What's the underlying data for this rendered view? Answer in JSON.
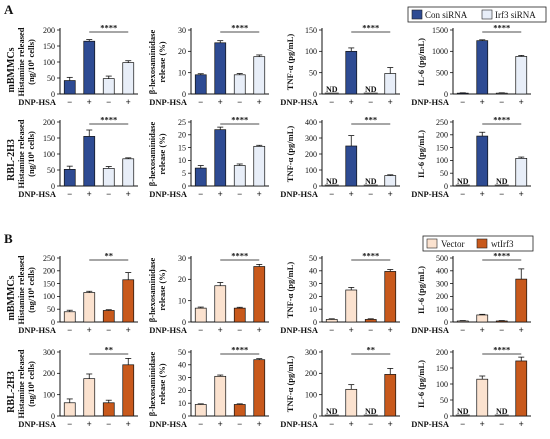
{
  "panels": [
    "A",
    "B"
  ],
  "row_labels": [
    "mBMMCs",
    "RBL-2H3"
  ],
  "legends": {
    "A": {
      "entries": [
        {
          "label": "Con siRNA",
          "color": "#2e4b93"
        },
        {
          "label": "Irf3 siRNA",
          "color": "#e8eef8"
        }
      ]
    },
    "B": {
      "entries": [
        {
          "label": "Vector",
          "color": "#fbe2cf"
        },
        {
          "label": "wtIrf3",
          "color": "#c8591c"
        }
      ]
    }
  },
  "treatment_label": "DNP-HSA",
  "x_ticks": [
    "−",
    "+",
    "−",
    "+"
  ],
  "nd_label": "ND",
  "chart_data": [
    {
      "type": "bar",
      "panel": "A",
      "row": "mBMMCs",
      "ylabel_line1": "Histamine released",
      "ylabel_line2": "(ng/10⁶ cells)",
      "ylim": [
        0,
        200
      ],
      "yticks": [
        0,
        50,
        100,
        150,
        200
      ],
      "ytick_labels": [
        "0",
        "50",
        "100",
        "150",
        "200"
      ],
      "values": [
        42,
        165,
        48,
        98
      ],
      "errors": [
        10,
        5,
        8,
        6
      ],
      "nd": [
        false,
        false,
        false,
        false
      ],
      "significance": "****",
      "colors": [
        "#2e4b93",
        "#e8eef8",
        "#2e4b93",
        "#e8eef8"
      ]
    },
    {
      "type": "bar",
      "panel": "A",
      "row": "mBMMCs",
      "ylabel_line1": "β-hexosaminidase",
      "ylabel_line2": "release (%)",
      "ylim": [
        0,
        30
      ],
      "yticks": [
        0,
        10,
        20,
        30
      ],
      "ytick_labels": [
        "0",
        "10",
        "20",
        "30"
      ],
      "values": [
        9,
        24,
        9,
        17.5
      ],
      "errors": [
        0.5,
        1,
        0.6,
        0.8
      ],
      "nd": [
        false,
        false,
        false,
        false
      ],
      "significance": "****"
    },
    {
      "type": "bar",
      "panel": "A",
      "row": "mBMMCs",
      "ylabel_line1": "TNF-α (pg/mL)",
      "ylabel_line2": "",
      "ylim": [
        0,
        150
      ],
      "yticks": [
        0,
        50,
        100,
        150
      ],
      "ytick_labels": [
        "0",
        "50",
        "100",
        "150"
      ],
      "values": [
        0,
        100,
        0,
        48
      ],
      "errors": [
        0,
        8,
        0,
        14
      ],
      "nd": [
        true,
        false,
        true,
        false
      ],
      "significance": "****"
    },
    {
      "type": "bar",
      "panel": "A",
      "row": "mBMMCs",
      "ylabel_line1": "IL-6 (pg/mL)",
      "ylabel_line2": "",
      "ylim": [
        0,
        1500
      ],
      "yticks": [
        0,
        500,
        1000,
        1500
      ],
      "ytick_labels": [
        "0",
        "500",
        "1000",
        "1500"
      ],
      "values": [
        20,
        1250,
        20,
        880
      ],
      "errors": [
        8,
        20,
        8,
        25
      ],
      "nd": [
        false,
        false,
        false,
        false
      ],
      "significance": "****"
    },
    {
      "type": "bar",
      "panel": "A",
      "row": "RBL-2H3",
      "ylabel_line1": "Histamine released",
      "ylabel_line2": "(ng/10⁶ cells)",
      "ylim": [
        0,
        200
      ],
      "yticks": [
        0,
        50,
        100,
        150,
        200
      ],
      "ytick_labels": [
        "0",
        "50",
        "100",
        "150",
        "200"
      ],
      "values": [
        52,
        155,
        55,
        85
      ],
      "errors": [
        10,
        20,
        6,
        3
      ],
      "nd": [
        false,
        false,
        false,
        false
      ],
      "significance": "****"
    },
    {
      "type": "bar",
      "panel": "A",
      "row": "RBL-2H3",
      "ylabel_line1": "β-hexosaminidase",
      "ylabel_line2": "release (%)",
      "ylim": [
        0,
        25
      ],
      "yticks": [
        0,
        5,
        10,
        15,
        20,
        25
      ],
      "ytick_labels": [
        "0",
        "5",
        "10",
        "15",
        "20",
        "25"
      ],
      "values": [
        7,
        22,
        8,
        15.5
      ],
      "errors": [
        1,
        1,
        0.6,
        0.4
      ],
      "nd": [
        false,
        false,
        false,
        false
      ],
      "significance": "****"
    },
    {
      "type": "bar",
      "panel": "A",
      "row": "RBL-2H3",
      "ylabel_line1": "TNF-α (pg/mL)",
      "ylabel_line2": "",
      "ylim": [
        0,
        400
      ],
      "yticks": [
        0,
        100,
        200,
        300,
        400
      ],
      "ytick_labels": [
        "0",
        "100",
        "200",
        "300",
        "400"
      ],
      "values": [
        0,
        250,
        0,
        65
      ],
      "errors": [
        0,
        65,
        0,
        5
      ],
      "nd": [
        true,
        false,
        true,
        false
      ],
      "significance": "***"
    },
    {
      "type": "bar",
      "panel": "A",
      "row": "RBL-2H3",
      "ylabel_line1": "IL-6 (pg/mL)",
      "ylabel_line2": "",
      "ylim": [
        0,
        250
      ],
      "yticks": [
        0,
        50,
        100,
        150,
        200,
        250
      ],
      "ytick_labels": [
        "0",
        "50",
        "100",
        "150",
        "200",
        "250"
      ],
      "values": [
        0,
        195,
        0,
        108
      ],
      "errors": [
        0,
        15,
        0,
        5
      ],
      "nd": [
        true,
        false,
        true,
        false
      ],
      "significance": "****"
    },
    {
      "type": "bar",
      "panel": "B",
      "row": "mBMMCs",
      "ylabel_line1": "Histamine  released",
      "ylabel_line2": "(ng/10⁶ cells)",
      "ylim": [
        0,
        250
      ],
      "yticks": [
        0,
        50,
        100,
        150,
        200,
        250
      ],
      "ytick_labels": [
        "0",
        "50",
        "100",
        "150",
        "200",
        "250"
      ],
      "values": [
        40,
        115,
        45,
        165
      ],
      "errors": [
        6,
        5,
        3,
        28
      ],
      "nd": [
        false,
        false,
        false,
        false
      ],
      "significance": "**"
    },
    {
      "type": "bar",
      "panel": "B",
      "row": "mBMMCs",
      "ylabel_line1": "β-hexosaminidase",
      "ylabel_line2": "release (%)",
      "ylim": [
        0,
        30
      ],
      "yticks": [
        0,
        10,
        20,
        30
      ],
      "ytick_labels": [
        "0",
        "10",
        "20",
        "30"
      ],
      "values": [
        6.5,
        17,
        6.5,
        26
      ],
      "errors": [
        0.5,
        1.5,
        0.4,
        1
      ],
      "nd": [
        false,
        false,
        false,
        false
      ],
      "significance": "****"
    },
    {
      "type": "bar",
      "panel": "B",
      "row": "mBMMCs",
      "ylabel_line1": "TNF-α (pg/mL)",
      "ylabel_line2": "",
      "ylim": [
        0,
        50
      ],
      "yticks": [
        0,
        10,
        20,
        30,
        40,
        50
      ],
      "ytick_labels": [
        "0",
        "10",
        "20",
        "30",
        "40",
        "50"
      ],
      "values": [
        2,
        25,
        2,
        39.5
      ],
      "errors": [
        0.5,
        2,
        0.5,
        1.5
      ],
      "nd": [
        false,
        false,
        false,
        false
      ],
      "significance": "****"
    },
    {
      "type": "bar",
      "panel": "B",
      "row": "mBMMCs",
      "ylabel_line1": "IL-6 (pg/mL)",
      "ylabel_line2": "",
      "ylim": [
        0,
        500
      ],
      "yticks": [
        0,
        100,
        200,
        300,
        400,
        500
      ],
      "ytick_labels": [
        "0",
        "100",
        "200",
        "300",
        "400",
        "500"
      ],
      "values": [
        8,
        55,
        8,
        335
      ],
      "errors": [
        3,
        5,
        3,
        80
      ],
      "nd": [
        false,
        false,
        false,
        false
      ],
      "significance": "****"
    },
    {
      "type": "bar",
      "panel": "B",
      "row": "RBL-2H3",
      "ylabel_line1": "Histamine released",
      "ylabel_line2": "(ng/10⁶ cells)",
      "ylim": [
        0,
        300
      ],
      "yticks": [
        0,
        100,
        200,
        300
      ],
      "ytick_labels": [
        "0",
        "100",
        "200",
        "300"
      ],
      "values": [
        62,
        175,
        62,
        240
      ],
      "errors": [
        18,
        22,
        12,
        30
      ],
      "nd": [
        false,
        false,
        false,
        false
      ],
      "significance": "**"
    },
    {
      "type": "bar",
      "panel": "B",
      "row": "RBL-2H3",
      "ylabel_line1": "β-hexosaminidase",
      "ylabel_line2": "release (%)",
      "ylim": [
        0,
        50
      ],
      "yticks": [
        0,
        10,
        20,
        30,
        40,
        50
      ],
      "ytick_labels": [
        "0",
        "10",
        "20",
        "30",
        "40",
        "50"
      ],
      "values": [
        9,
        31,
        9,
        44
      ],
      "errors": [
        0.5,
        1,
        0.5,
        0.8
      ],
      "nd": [
        false,
        false,
        false,
        false
      ],
      "significance": "****"
    },
    {
      "type": "bar",
      "panel": "B",
      "row": "RBL-2H3",
      "ylabel_line1": "TNF-α (pg/mL)",
      "ylabel_line2": "",
      "ylim": [
        0,
        300
      ],
      "yticks": [
        0,
        100,
        200,
        300
      ],
      "ytick_labels": [
        "0",
        "100",
        "200",
        "300"
      ],
      "values": [
        0,
        125,
        0,
        195
      ],
      "errors": [
        0,
        22,
        0,
        28
      ],
      "nd": [
        true,
        false,
        true,
        false
      ],
      "significance": "**"
    },
    {
      "type": "bar",
      "panel": "B",
      "row": "RBL-2H3",
      "ylabel_line1": "IL-6 (pg/mL)",
      "ylabel_line2": "",
      "ylim": [
        0,
        200
      ],
      "yticks": [
        0,
        50,
        100,
        150,
        200
      ],
      "ytick_labels": [
        "0",
        "50",
        "100",
        "150",
        "200"
      ],
      "values": [
        0,
        115,
        0,
        172
      ],
      "errors": [
        0,
        10,
        0,
        12
      ],
      "nd": [
        true,
        false,
        true,
        false
      ],
      "significance": "****"
    }
  ]
}
